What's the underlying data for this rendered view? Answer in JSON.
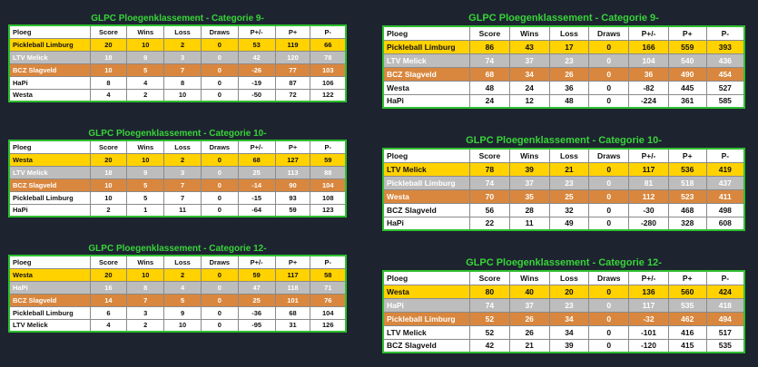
{
  "columns": [
    "Ploeg",
    "Score",
    "Wins",
    "Loss",
    "Draws",
    "P+/-",
    "P+",
    "P-"
  ],
  "tables": [
    {
      "id": "left-cat9",
      "title": "GLPC Ploegenklassement - Categorie 9-",
      "rows": [
        [
          "Pickleball Limburg",
          "20",
          "10",
          "2",
          "0",
          "53",
          "119",
          "66"
        ],
        [
          "LTV Melick",
          "18",
          "9",
          "3",
          "0",
          "42",
          "120",
          "78"
        ],
        [
          "BCZ Slagveld",
          "10",
          "5",
          "7",
          "0",
          "-26",
          "77",
          "103"
        ],
        [
          "HaPi",
          "8",
          "4",
          "8",
          "0",
          "-19",
          "87",
          "106"
        ],
        [
          "Westa",
          "4",
          "2",
          "10",
          "0",
          "-50",
          "72",
          "122"
        ]
      ]
    },
    {
      "id": "left-cat10",
      "title": "GLPC Ploegenklassement - Categorie 10-",
      "rows": [
        [
          "Westa",
          "20",
          "10",
          "2",
          "0",
          "68",
          "127",
          "59"
        ],
        [
          "LTV Melick",
          "18",
          "9",
          "3",
          "0",
          "25",
          "113",
          "88"
        ],
        [
          "BCZ Slagveld",
          "10",
          "5",
          "7",
          "0",
          "-14",
          "90",
          "104"
        ],
        [
          "Pickleball Limburg",
          "10",
          "5",
          "7",
          "0",
          "-15",
          "93",
          "108"
        ],
        [
          "HaPi",
          "2",
          "1",
          "11",
          "0",
          "-64",
          "59",
          "123"
        ]
      ]
    },
    {
      "id": "left-cat12",
      "title": "GLPC Ploegenklassement - Categorie 12-",
      "rows": [
        [
          "Westa",
          "20",
          "10",
          "2",
          "0",
          "59",
          "117",
          "58"
        ],
        [
          "HaPi",
          "16",
          "8",
          "4",
          "0",
          "47",
          "118",
          "71"
        ],
        [
          "BCZ Slagveld",
          "14",
          "7",
          "5",
          "0",
          "25",
          "101",
          "76"
        ],
        [
          "Pickleball Limburg",
          "6",
          "3",
          "9",
          "0",
          "-36",
          "68",
          "104"
        ],
        [
          "LTV Melick",
          "4",
          "2",
          "10",
          "0",
          "-95",
          "31",
          "126"
        ]
      ]
    },
    {
      "id": "right-cat9",
      "title": "GLPC Ploegenklassement - Categorie 9-",
      "rows": [
        [
          "Pickleball Limburg",
          "86",
          "43",
          "17",
          "0",
          "166",
          "559",
          "393"
        ],
        [
          "LTV Melick",
          "74",
          "37",
          "23",
          "0",
          "104",
          "540",
          "436"
        ],
        [
          "BCZ Slagveld",
          "68",
          "34",
          "26",
          "0",
          "36",
          "490",
          "454"
        ],
        [
          "Westa",
          "48",
          "24",
          "36",
          "0",
          "-82",
          "445",
          "527"
        ],
        [
          "HaPi",
          "24",
          "12",
          "48",
          "0",
          "-224",
          "361",
          "585"
        ]
      ]
    },
    {
      "id": "right-cat10",
      "title": "GLPC Ploegenklassement - Categorie 10-",
      "rows": [
        [
          "LTV Melick",
          "78",
          "39",
          "21",
          "0",
          "117",
          "536",
          "419"
        ],
        [
          "Pickleball Limburg",
          "74",
          "37",
          "23",
          "0",
          "81",
          "518",
          "437"
        ],
        [
          "Westa",
          "70",
          "35",
          "25",
          "0",
          "112",
          "523",
          "411"
        ],
        [
          "BCZ Slagveld",
          "56",
          "28",
          "32",
          "0",
          "-30",
          "468",
          "498"
        ],
        [
          "HaPi",
          "22",
          "11",
          "49",
          "0",
          "-280",
          "328",
          "608"
        ]
      ]
    },
    {
      "id": "right-cat12",
      "title": "GLPC Ploegenklassement - Categorie 12-",
      "rows": [
        [
          "Westa",
          "80",
          "40",
          "20",
          "0",
          "136",
          "560",
          "424"
        ],
        [
          "HaPi",
          "74",
          "37",
          "23",
          "0",
          "117",
          "535",
          "418"
        ],
        [
          "Pickleball Limburg",
          "52",
          "26",
          "34",
          "0",
          "-32",
          "462",
          "494"
        ],
        [
          "LTV Melick",
          "52",
          "26",
          "34",
          "0",
          "-101",
          "416",
          "517"
        ],
        [
          "BCZ Slagveld",
          "42",
          "21",
          "39",
          "0",
          "-120",
          "415",
          "535"
        ]
      ]
    }
  ],
  "colors": {
    "background": "#1d2430",
    "title": "#39d339",
    "border": "#2fbf2f",
    "gold": "#ffd200",
    "silver": "#bdbdbd",
    "bronze": "#d9873e"
  }
}
